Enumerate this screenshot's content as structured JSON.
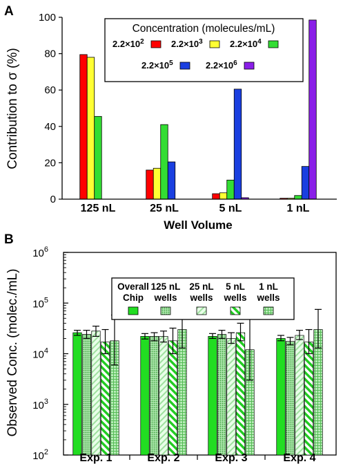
{
  "chart_data": [
    {
      "panel": "A",
      "type": "bar",
      "xlabel": "Well Volume",
      "ylabel": "Contribution to σ (%)",
      "ylim": [
        0,
        100
      ],
      "yticks": [
        0,
        20,
        40,
        60,
        80,
        100
      ],
      "categories": [
        "125 nL",
        "25 nL",
        "5 nL",
        "1 nL"
      ],
      "legend": {
        "title": "Concentration (molecules/mL)",
        "placement": "top-right"
      },
      "series": [
        {
          "name": "2.2×10",
          "exponent": "2",
          "color": "#ff0000",
          "values": [
            79.5,
            16,
            3,
            0.5
          ]
        },
        {
          "name": "2.2×10",
          "exponent": "3",
          "color": "#ffff33",
          "values": [
            78,
            17,
            3.5,
            0.5
          ]
        },
        {
          "name": "2.2×10",
          "exponent": "4",
          "color": "#33dd33",
          "values": [
            45.5,
            41,
            10.5,
            2
          ]
        },
        {
          "name": "2.2×10",
          "exponent": "5",
          "color": "#1a3fe0",
          "values": [
            0,
            20.5,
            60.5,
            18
          ]
        },
        {
          "name": "2.2×10",
          "exponent": "6",
          "color": "#8a1ee8",
          "values": [
            0,
            0,
            0.8,
            98.5
          ]
        }
      ]
    },
    {
      "panel": "B",
      "type": "bar",
      "ylabel": "Observed Conc. (molec./mL)",
      "yscale": "log",
      "ylim": [
        100,
        1000000
      ],
      "yticks": [
        {
          "base": "10",
          "exp": "2"
        },
        {
          "base": "10",
          "exp": "3"
        },
        {
          "base": "10",
          "exp": "4"
        },
        {
          "base": "10",
          "exp": "5"
        },
        {
          "base": "10",
          "exp": "6"
        }
      ],
      "categories": [
        "Exp. 1",
        "Exp. 2",
        "Exp. 3",
        "Exp. 4"
      ],
      "legend": {
        "placement": "top"
      },
      "series": [
        {
          "name": "Overall Chip",
          "name_lines": [
            "Overall",
            "Chip"
          ],
          "color": "#22dd22",
          "pattern": "solid",
          "values": [
            26000,
            22000,
            22000,
            20000
          ],
          "err_low": [
            23000,
            19500,
            20000,
            18000
          ],
          "err_high": [
            29000,
            25000,
            25000,
            23000
          ]
        },
        {
          "name": "125 nL wells",
          "name_lines": [
            "125 nL",
            "wells"
          ],
          "color": "#88dd88",
          "pattern": "dots",
          "values": [
            24000,
            22000,
            24000,
            17500
          ],
          "err_low": [
            20000,
            18000,
            20000,
            15000
          ],
          "err_high": [
            29000,
            26000,
            29000,
            21000
          ]
        },
        {
          "name": "25 nL wells",
          "name_lines": [
            "25 nL",
            "wells"
          ],
          "color": "#ccffcc",
          "pattern": "diag-light",
          "values": [
            28000,
            22000,
            20000,
            23000
          ],
          "err_low": [
            22000,
            17000,
            16000,
            19000
          ],
          "err_high": [
            35000,
            28000,
            26000,
            29000
          ]
        },
        {
          "name": "5 nL wells",
          "name_lines": [
            "5 nL",
            "wells"
          ],
          "color": "#44dd44",
          "pattern": "diag-bold",
          "values": [
            17000,
            18000,
            26000,
            17000
          ],
          "err_low": [
            10000,
            10000,
            18000,
            10000
          ],
          "err_high": [
            30000,
            32000,
            40000,
            30000
          ]
        },
        {
          "name": "1 nL wells",
          "name_lines": [
            "1 nL",
            "wells"
          ],
          "color": "#66cc66",
          "pattern": "grid",
          "values": [
            18000,
            30000,
            12000,
            30000
          ],
          "err_low": [
            6000,
            13000,
            3000,
            13000
          ],
          "err_high": [
            58000,
            75000,
            48000,
            75000
          ]
        }
      ]
    }
  ]
}
